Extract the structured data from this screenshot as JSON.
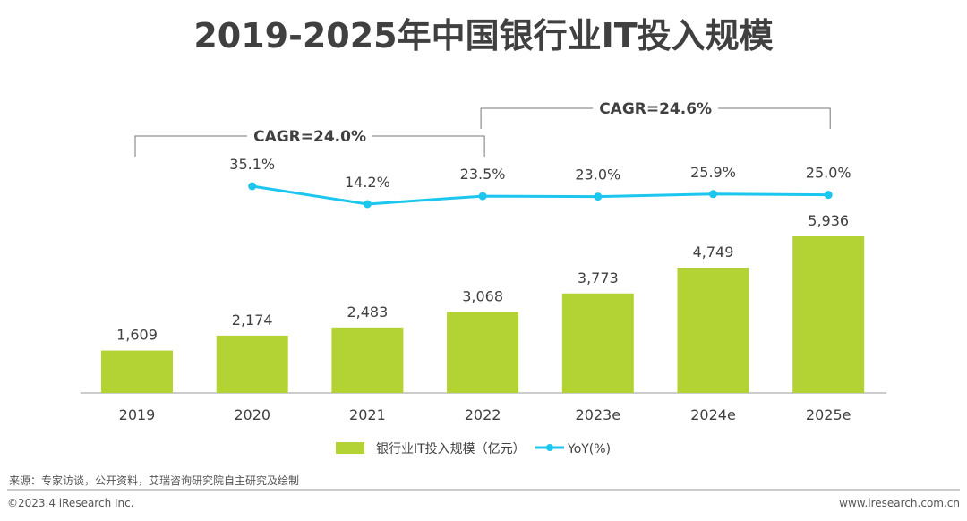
{
  "title": "2019-2025年中国银行业IT投入规模",
  "chart_data": {
    "type": "bar+line",
    "title": "2019-2025年中国银行业IT投入规模",
    "categories": [
      "2019",
      "2020",
      "2021",
      "2022",
      "2023e",
      "2024e",
      "2025e"
    ],
    "series": [
      {
        "name": "银行业IT投入规模（亿元）",
        "type": "bar",
        "values": [
          1609,
          2174,
          2483,
          3068,
          3773,
          4749,
          5936
        ],
        "labels": [
          "1,609",
          "2,174",
          "2,483",
          "3,068",
          "3,773",
          "4,749",
          "5,936"
        ],
        "color": "#b3d234"
      },
      {
        "name": "YoY(%)",
        "type": "line",
        "values": [
          null,
          35.1,
          14.2,
          23.5,
          23.0,
          25.9,
          25.0
        ],
        "labels": [
          "",
          "35.1%",
          "14.2%",
          "23.5%",
          "23.0%",
          "25.9%",
          "25.0%"
        ],
        "color": "#1cc6ef"
      }
    ],
    "annotations": [
      {
        "text": "CAGR=24.0%",
        "from": "2019",
        "to": "2022"
      },
      {
        "text": "CAGR=24.6%",
        "from": "2022",
        "to": "2025e"
      }
    ],
    "legend": "bottom"
  },
  "source": "来源：专家访谈，公开资料，艾瑞咨询研究院自主研究及绘制",
  "footer": {
    "copyright": "©2023.4 iResearch Inc.",
    "website": "www.iresearch.com.cn"
  }
}
